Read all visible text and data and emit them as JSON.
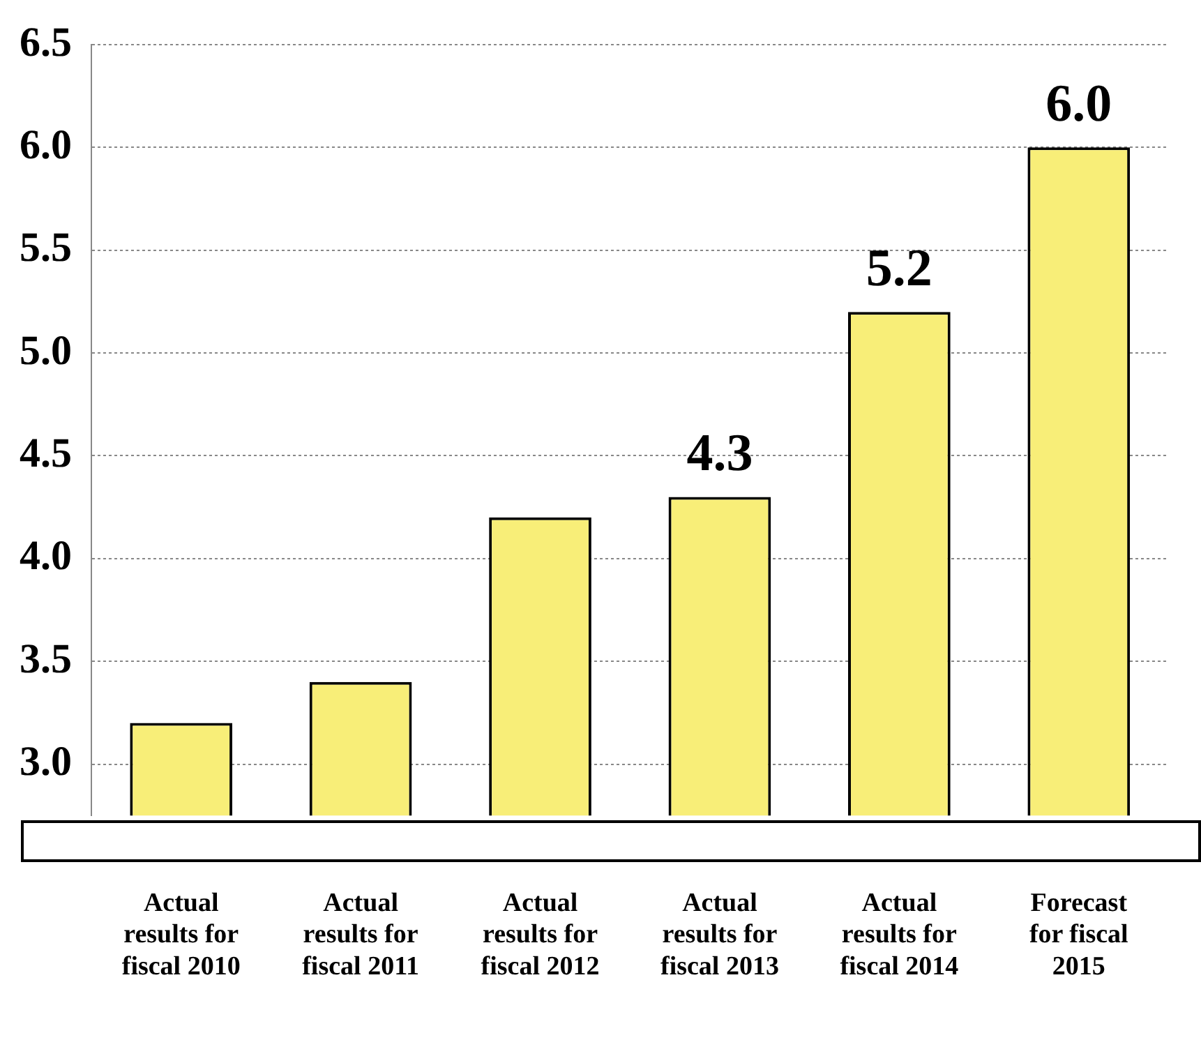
{
  "chart_data": {
    "type": "bar",
    "categories": [
      "Actual results for fiscal 2010",
      "Actual results for fiscal 2011",
      "Actual results for fiscal 2012",
      "Actual results for fiscal 2013",
      "Actual results for fiscal 2014",
      "Forecast for fiscal 2015"
    ],
    "values": [
      3.2,
      3.4,
      4.2,
      4.3,
      5.2,
      6.0
    ],
    "value_labels": [
      null,
      null,
      null,
      "4.3",
      "5.2",
      "6.0"
    ],
    "color": "#f8ee78",
    "ylim": [
      2.75,
      6.5
    ],
    "yticks": [
      {
        "value": 3,
        "label": "3.0"
      },
      {
        "value": 3.5,
        "label": "3.5"
      },
      {
        "value": 4,
        "label": "4.0"
      },
      {
        "value": 4.5,
        "label": "4.5"
      },
      {
        "value": 5,
        "label": "5.0"
      },
      {
        "value": 5.5,
        "label": "5.5"
      },
      {
        "value": 6,
        "label": "6.0"
      },
      {
        "value": 6.5,
        "label": "6.5"
      }
    ],
    "grid": "y",
    "legend": false
  }
}
